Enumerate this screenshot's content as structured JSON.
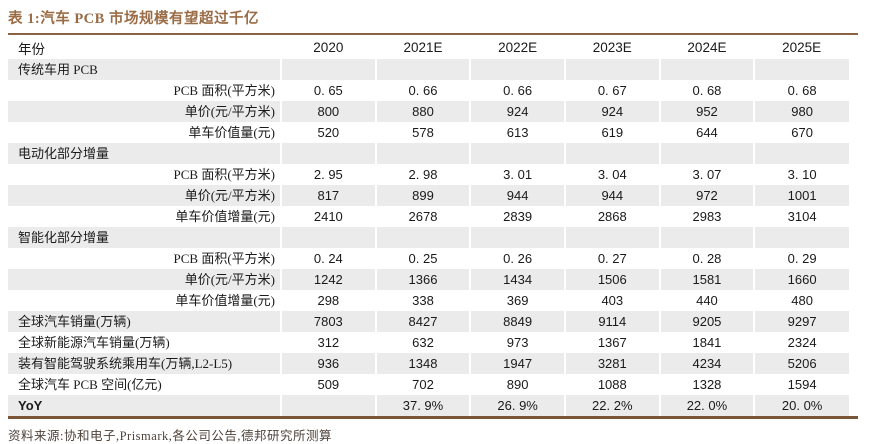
{
  "title": "表 1:汽车 PCB 市场规模有望超过千亿",
  "source_note": "资料来源:协和电子,Prismark,各公司公告,德邦研究所测算",
  "colors": {
    "accent": "#9a6c46",
    "rule_top": "#8a6345",
    "rule_bottom": "#7b5538",
    "stripe": "#ebebeb",
    "text": "#1a1a1a",
    "source_text": "#4f433b"
  },
  "table": {
    "header": {
      "label": "年份",
      "columns": [
        "2020",
        "2021E",
        "2022E",
        "2023E",
        "2024E",
        "2025E"
      ]
    },
    "rows": [
      {
        "label": "传统车用 PCB",
        "align": "left",
        "values": [
          "",
          "",
          "",
          "",
          "",
          ""
        ]
      },
      {
        "label": "PCB 面积(平方米)",
        "align": "right",
        "values": [
          "0. 65",
          "0. 66",
          "0. 66",
          "0. 67",
          "0. 68",
          "0. 68"
        ]
      },
      {
        "label": "单价(元/平方米)",
        "align": "right",
        "values": [
          "800",
          "880",
          "924",
          "924",
          "952",
          "980"
        ]
      },
      {
        "label": "单车价值量(元)",
        "align": "right",
        "values": [
          "520",
          "578",
          "613",
          "619",
          "644",
          "670"
        ]
      },
      {
        "label": "电动化部分增量",
        "align": "left",
        "values": [
          "",
          "",
          "",
          "",
          "",
          ""
        ]
      },
      {
        "label": "PCB 面积(平方米)",
        "align": "right",
        "values": [
          "2. 95",
          "2. 98",
          "3. 01",
          "3. 04",
          "3. 07",
          "3. 10"
        ]
      },
      {
        "label": "单价(元/平方米)",
        "align": "right",
        "values": [
          "817",
          "899",
          "944",
          "944",
          "972",
          "1001"
        ]
      },
      {
        "label": "单车价值增量(元)",
        "align": "right",
        "values": [
          "2410",
          "2678",
          "2839",
          "2868",
          "2983",
          "3104"
        ]
      },
      {
        "label": "智能化部分增量",
        "align": "left",
        "values": [
          "",
          "",
          "",
          "",
          "",
          ""
        ]
      },
      {
        "label": "PCB 面积(平方米)",
        "align": "right",
        "values": [
          "0. 24",
          "0. 25",
          "0. 26",
          "0. 27",
          "0. 28",
          "0. 29"
        ]
      },
      {
        "label": "单价(元/平方米)",
        "align": "right",
        "values": [
          "1242",
          "1366",
          "1434",
          "1506",
          "1581",
          "1660"
        ]
      },
      {
        "label": "单车价值增量(元)",
        "align": "right",
        "values": [
          "298",
          "338",
          "369",
          "403",
          "440",
          "480"
        ]
      },
      {
        "label": "全球汽车销量(万辆)",
        "align": "left",
        "values": [
          "7803",
          "8427",
          "8849",
          "9114",
          "9205",
          "9297"
        ]
      },
      {
        "label": "全球新能源汽车销量(万辆)",
        "align": "left",
        "values": [
          "312",
          "632",
          "973",
          "1367",
          "1841",
          "2324"
        ]
      },
      {
        "label": "装有智能驾驶系统乘用车(万辆,L2-L5)",
        "align": "left",
        "values": [
          "936",
          "1348",
          "1947",
          "3281",
          "4234",
          "5206"
        ]
      },
      {
        "label": "全球汽车 PCB 空间(亿元)",
        "align": "left",
        "values": [
          "509",
          "702",
          "890",
          "1088",
          "1328",
          "1594"
        ]
      },
      {
        "label": "YoY",
        "align": "left",
        "bold": true,
        "values": [
          "",
          "37. 9%",
          "26. 9%",
          "22. 2%",
          "22. 0%",
          "20. 0%"
        ]
      }
    ]
  }
}
